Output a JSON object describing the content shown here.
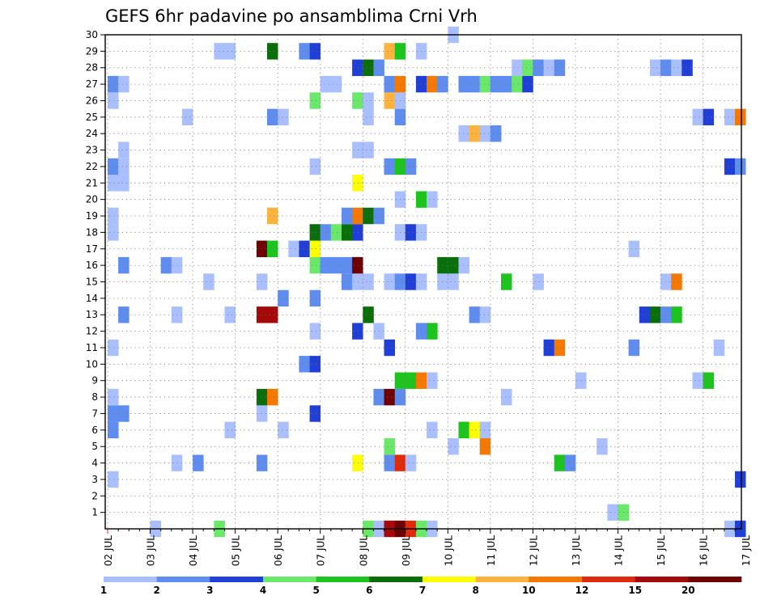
{
  "chart_data": {
    "type": "heatmap",
    "title": "GEFS 6hr padavine po ansamblima Crni Vrh",
    "xlabel": "",
    "ylabel": "",
    "x_ticks": [
      "02 JUL",
      "03 JUL",
      "04 JUL",
      "05 JUL",
      "06 JUL",
      "07 JUL",
      "08 JUL",
      "09 JUL",
      "10 JUL",
      "11 JUL",
      "12 JUL",
      "13 JUL",
      "14 JUL",
      "15 JUL",
      "16 JUL",
      "17 JUL"
    ],
    "y_ticks": [
      1,
      2,
      3,
      4,
      5,
      6,
      7,
      8,
      9,
      10,
      11,
      12,
      13,
      14,
      15,
      16,
      17,
      18,
      19,
      20,
      21,
      22,
      23,
      24,
      25,
      26,
      27,
      28,
      29,
      30
    ],
    "xlim_hours": [
      0,
      360
    ],
    "ylim": [
      0,
      30
    ],
    "grid": true,
    "colorbar": {
      "labels": [
        "1",
        "2",
        "3",
        "4",
        "5",
        "6",
        "7",
        "8",
        "10",
        "12",
        "15",
        "20"
      ],
      "colors": [
        "#aabfff",
        "#5f8def",
        "#1f3fd6",
        "#6ae86a",
        "#1dc41d",
        "#0a6e0a",
        "#ffff00",
        "#ffb33f",
        "#f57800",
        "#e02b0b",
        "#a50a0a",
        "#6e0000"
      ]
    },
    "cell_hours": 6,
    "cells_note": "each cell = [hour_from_start, member, color_class 0-11]",
    "cells": [
      [
        24,
        0,
        0
      ],
      [
        60,
        0,
        3
      ],
      [
        144,
        0,
        3
      ],
      [
        150,
        0,
        0
      ],
      [
        156,
        0,
        10
      ],
      [
        162,
        0,
        11
      ],
      [
        168,
        0,
        9
      ],
      [
        174,
        0,
        3
      ],
      [
        180,
        0,
        0
      ],
      [
        348,
        0,
        0
      ],
      [
        354,
        0,
        2
      ],
      [
        282,
        1,
        0
      ],
      [
        288,
        1,
        3
      ],
      [
        0,
        3,
        0
      ],
      [
        354,
        3,
        2
      ],
      [
        36,
        4,
        0
      ],
      [
        48,
        4,
        1
      ],
      [
        84,
        4,
        1
      ],
      [
        138,
        4,
        6
      ],
      [
        156,
        4,
        1
      ],
      [
        162,
        4,
        9
      ],
      [
        168,
        4,
        0
      ],
      [
        252,
        4,
        4
      ],
      [
        258,
        4,
        1
      ],
      [
        156,
        5,
        3
      ],
      [
        192,
        5,
        0
      ],
      [
        210,
        5,
        8
      ],
      [
        276,
        5,
        0
      ],
      [
        0,
        6,
        1
      ],
      [
        66,
        6,
        0
      ],
      [
        96,
        6,
        0
      ],
      [
        180,
        6,
        0
      ],
      [
        198,
        6,
        4
      ],
      [
        204,
        6,
        6
      ],
      [
        210,
        6,
        0
      ],
      [
        0,
        7,
        1
      ],
      [
        6,
        7,
        1
      ],
      [
        84,
        7,
        0
      ],
      [
        114,
        7,
        2
      ],
      [
        0,
        8,
        0
      ],
      [
        84,
        8,
        5
      ],
      [
        90,
        8,
        8
      ],
      [
        150,
        8,
        1
      ],
      [
        156,
        8,
        11
      ],
      [
        162,
        8,
        1
      ],
      [
        222,
        8,
        0
      ],
      [
        162,
        9,
        4
      ],
      [
        168,
        9,
        4
      ],
      [
        174,
        9,
        8
      ],
      [
        180,
        9,
        0
      ],
      [
        264,
        9,
        0
      ],
      [
        330,
        9,
        0
      ],
      [
        336,
        9,
        4
      ],
      [
        108,
        10,
        1
      ],
      [
        114,
        10,
        2
      ],
      [
        0,
        11,
        0
      ],
      [
        156,
        11,
        2
      ],
      [
        246,
        11,
        2
      ],
      [
        252,
        11,
        8
      ],
      [
        294,
        11,
        1
      ],
      [
        342,
        11,
        0
      ],
      [
        114,
        12,
        0
      ],
      [
        138,
        12,
        2
      ],
      [
        150,
        12,
        0
      ],
      [
        174,
        12,
        1
      ],
      [
        180,
        12,
        4
      ],
      [
        6,
        13,
        1
      ],
      [
        36,
        13,
        0
      ],
      [
        66,
        13,
        0
      ],
      [
        84,
        13,
        10
      ],
      [
        90,
        13,
        10
      ],
      [
        144,
        13,
        5
      ],
      [
        204,
        13,
        1
      ],
      [
        210,
        13,
        0
      ],
      [
        300,
        13,
        2
      ],
      [
        306,
        13,
        5
      ],
      [
        312,
        13,
        1
      ],
      [
        318,
        13,
        4
      ],
      [
        96,
        14,
        1
      ],
      [
        114,
        14,
        1
      ],
      [
        54,
        15,
        0
      ],
      [
        84,
        15,
        0
      ],
      [
        132,
        15,
        1
      ],
      [
        138,
        15,
        0
      ],
      [
        144,
        15,
        0
      ],
      [
        156,
        15,
        0
      ],
      [
        162,
        15,
        1
      ],
      [
        168,
        15,
        2
      ],
      [
        174,
        15,
        0
      ],
      [
        186,
        15,
        0
      ],
      [
        192,
        15,
        0
      ],
      [
        222,
        15,
        4
      ],
      [
        240,
        15,
        0
      ],
      [
        312,
        15,
        0
      ],
      [
        318,
        15,
        8
      ],
      [
        6,
        16,
        1
      ],
      [
        30,
        16,
        1
      ],
      [
        36,
        16,
        0
      ],
      [
        114,
        16,
        3
      ],
      [
        120,
        16,
        1
      ],
      [
        126,
        16,
        1
      ],
      [
        132,
        16,
        1
      ],
      [
        138,
        16,
        11
      ],
      [
        186,
        16,
        5
      ],
      [
        192,
        16,
        5
      ],
      [
        198,
        16,
        0
      ],
      [
        84,
        17,
        11
      ],
      [
        90,
        17,
        4
      ],
      [
        102,
        17,
        0
      ],
      [
        108,
        17,
        2
      ],
      [
        114,
        17,
        6
      ],
      [
        294,
        17,
        0
      ],
      [
        0,
        18,
        0
      ],
      [
        114,
        18,
        5
      ],
      [
        120,
        18,
        1
      ],
      [
        126,
        18,
        3
      ],
      [
        132,
        18,
        5
      ],
      [
        138,
        18,
        2
      ],
      [
        162,
        18,
        0
      ],
      [
        168,
        18,
        2
      ],
      [
        174,
        18,
        0
      ],
      [
        0,
        19,
        0
      ],
      [
        90,
        19,
        7
      ],
      [
        132,
        19,
        1
      ],
      [
        138,
        19,
        8
      ],
      [
        144,
        19,
        5
      ],
      [
        150,
        19,
        1
      ],
      [
        162,
        20,
        0
      ],
      [
        174,
        20,
        4
      ],
      [
        180,
        20,
        0
      ],
      [
        0,
        21,
        0
      ],
      [
        6,
        21,
        0
      ],
      [
        138,
        21,
        6
      ],
      [
        0,
        22,
        1
      ],
      [
        6,
        22,
        0
      ],
      [
        114,
        22,
        0
      ],
      [
        156,
        22,
        1
      ],
      [
        162,
        22,
        4
      ],
      [
        168,
        22,
        1
      ],
      [
        348,
        22,
        2
      ],
      [
        354,
        22,
        1
      ],
      [
        6,
        23,
        0
      ],
      [
        138,
        23,
        0
      ],
      [
        144,
        23,
        0
      ],
      [
        198,
        24,
        0
      ],
      [
        204,
        24,
        7
      ],
      [
        210,
        24,
        0
      ],
      [
        216,
        24,
        1
      ],
      [
        42,
        25,
        0
      ],
      [
        90,
        25,
        1
      ],
      [
        96,
        25,
        0
      ],
      [
        144,
        25,
        0
      ],
      [
        162,
        25,
        1
      ],
      [
        330,
        25,
        0
      ],
      [
        336,
        25,
        2
      ],
      [
        348,
        25,
        0
      ],
      [
        354,
        25,
        8
      ],
      [
        0,
        26,
        0
      ],
      [
        114,
        26,
        3
      ],
      [
        138,
        26,
        3
      ],
      [
        144,
        26,
        0
      ],
      [
        156,
        26,
        7
      ],
      [
        162,
        26,
        0
      ],
      [
        0,
        27,
        1
      ],
      [
        6,
        27,
        0
      ],
      [
        120,
        27,
        0
      ],
      [
        126,
        27,
        0
      ],
      [
        156,
        27,
        1
      ],
      [
        162,
        27,
        8
      ],
      [
        174,
        27,
        2
      ],
      [
        180,
        27,
        8
      ],
      [
        186,
        27,
        1
      ],
      [
        198,
        27,
        1
      ],
      [
        204,
        27,
        1
      ],
      [
        210,
        27,
        3
      ],
      [
        216,
        27,
        1
      ],
      [
        222,
        27,
        1
      ],
      [
        228,
        27,
        3
      ],
      [
        234,
        27,
        2
      ],
      [
        138,
        28,
        2
      ],
      [
        144,
        28,
        5
      ],
      [
        150,
        28,
        1
      ],
      [
        228,
        28,
        0
      ],
      [
        234,
        28,
        3
      ],
      [
        240,
        28,
        1
      ],
      [
        246,
        28,
        0
      ],
      [
        252,
        28,
        1
      ],
      [
        306,
        28,
        0
      ],
      [
        312,
        28,
        1
      ],
      [
        318,
        28,
        0
      ],
      [
        324,
        28,
        2
      ],
      [
        60,
        29,
        0
      ],
      [
        66,
        29,
        0
      ],
      [
        90,
        29,
        5
      ],
      [
        108,
        29,
        1
      ],
      [
        114,
        29,
        2
      ],
      [
        156,
        29,
        7
      ],
      [
        162,
        29,
        4
      ],
      [
        174,
        29,
        0
      ],
      [
        192,
        30,
        0
      ]
    ]
  }
}
